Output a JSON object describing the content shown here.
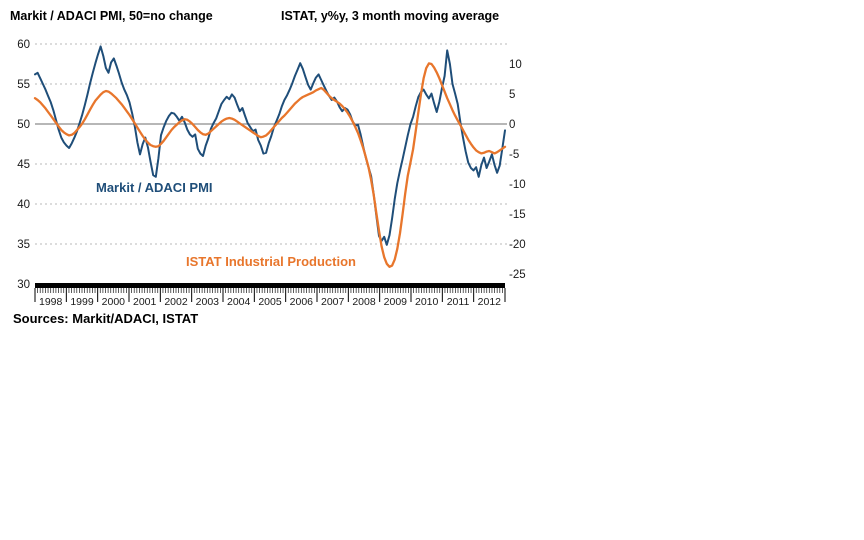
{
  "header": {
    "left_title": "Markit / ADACI PMI, 50=no change",
    "right_title": "ISTAT, y%y, 3 month moving average"
  },
  "legend": {
    "pmi": "Markit / ADACI PMI",
    "ip": "ISTAT Industrial Production"
  },
  "footer": {
    "sources": "Sources: Markit/ADACI, ISTAT"
  },
  "colors": {
    "pmi": "#1F4E79",
    "ip": "#E8762C",
    "grid": "#b8b8b8",
    "zero_line": "#8c8c8c",
    "axis": "#000000",
    "tick": "#333333",
    "text": "#1a1a1a"
  },
  "chart_data": {
    "type": "line",
    "title": "Italy PMI vs Industrial Production",
    "x_years": [
      1998,
      1999,
      2000,
      2001,
      2002,
      2003,
      2004,
      2005,
      2006,
      2007,
      2008,
      2009,
      2010,
      2011,
      2012
    ],
    "x_frequency": "monthly",
    "x_start": "1998-01",
    "x_end": "2012-12",
    "left_axis": {
      "label": "Markit / ADACI PMI, 50=no change",
      "ticks": [
        60,
        55,
        50,
        45,
        40,
        35,
        30
      ],
      "range": [
        30,
        60
      ],
      "solid_line_at": 50,
      "grid": "dotted"
    },
    "right_axis": {
      "label": "ISTAT, y%y, 3 month moving average",
      "ticks": [
        10,
        5,
        0,
        -5,
        -10,
        -15,
        -20,
        -25
      ],
      "range": [
        -25,
        10
      ]
    },
    "series": [
      {
        "name": "Markit / ADACI PMI",
        "axis": "left",
        "color_key": "pmi",
        "values": [
          56.2,
          56.4,
          55.7,
          55.0,
          54.3,
          53.5,
          52.7,
          51.7,
          50.5,
          49.3,
          48.3,
          47.7,
          47.3,
          47.0,
          47.6,
          48.3,
          49.1,
          50.1,
          51.2,
          52.4,
          53.7,
          55.1,
          56.4,
          57.6,
          58.7,
          59.7,
          58.5,
          57.0,
          56.4,
          57.7,
          58.2,
          57.3,
          56.3,
          55.2,
          54.3,
          53.6,
          52.7,
          51.3,
          49.7,
          47.7,
          46.2,
          47.5,
          48.3,
          47.1,
          45.3,
          43.6,
          43.4,
          45.7,
          48.6,
          49.6,
          50.4,
          51.0,
          51.4,
          51.3,
          50.9,
          50.4,
          50.9,
          50.2,
          49.3,
          48.7,
          48.4,
          48.7,
          46.9,
          46.3,
          46.0,
          47.3,
          48.2,
          49.4,
          50.1,
          50.7,
          51.6,
          52.5,
          53.0,
          53.4,
          53.1,
          53.7,
          53.3,
          52.4,
          51.6,
          52.0,
          51.0,
          50.1,
          49.6,
          49.1,
          49.3,
          48.0,
          47.3,
          46.3,
          46.4,
          47.6,
          48.5,
          49.6,
          50.4,
          51.2,
          52.2,
          53.0,
          53.6,
          54.3,
          55.1,
          56.0,
          56.8,
          57.6,
          56.9,
          55.9,
          54.9,
          54.3,
          55.1,
          55.8,
          56.2,
          55.5,
          54.8,
          54.1,
          53.5,
          53.0,
          53.3,
          52.8,
          52.1,
          51.6,
          52.0,
          51.8,
          51.2,
          50.3,
          49.8,
          49.9,
          48.7,
          47.2,
          45.8,
          44.6,
          43.5,
          41.2,
          38.6,
          36.0,
          35.4,
          35.9,
          34.9,
          36.1,
          38.2,
          40.6,
          42.6,
          44.2,
          45.6,
          47.1,
          48.6,
          50.0,
          50.9,
          52.2,
          53.4,
          54.0,
          54.3,
          53.7,
          53.2,
          53.8,
          52.6,
          51.5,
          52.8,
          54.5,
          56.0,
          59.2,
          57.5,
          55.0,
          53.8,
          52.5,
          50.2,
          48.3,
          46.6,
          45.2,
          44.5,
          44.2,
          44.6,
          43.4,
          44.9,
          45.8,
          44.5,
          45.3,
          46.2,
          44.9,
          43.9,
          44.8,
          47.0,
          49.2
        ]
      },
      {
        "name": "ISTAT Industrial Production",
        "axis": "right",
        "color_key": "ip",
        "values": [
          4.3,
          4.0,
          3.6,
          3.1,
          2.6,
          2.0,
          1.4,
          0.8,
          0.2,
          -0.4,
          -1.0,
          -1.4,
          -1.7,
          -1.9,
          -1.8,
          -1.5,
          -1.0,
          -0.5,
          0.1,
          0.8,
          1.6,
          2.4,
          3.2,
          3.9,
          4.4,
          4.9,
          5.3,
          5.5,
          5.4,
          5.1,
          4.7,
          4.3,
          3.8,
          3.3,
          2.7,
          2.1,
          1.5,
          0.8,
          0.1,
          -0.6,
          -1.3,
          -2.0,
          -2.6,
          -3.1,
          -3.5,
          -3.7,
          -3.8,
          -3.7,
          -3.3,
          -2.8,
          -2.2,
          -1.6,
          -1.0,
          -0.5,
          -0.1,
          0.3,
          0.6,
          0.8,
          0.7,
          0.4,
          0.0,
          -0.5,
          -1.0,
          -1.4,
          -1.7,
          -1.8,
          -1.6,
          -1.2,
          -0.8,
          -0.4,
          0.0,
          0.4,
          0.7,
          0.9,
          1.0,
          0.9,
          0.7,
          0.4,
          0.1,
          -0.2,
          -0.5,
          -0.8,
          -1.1,
          -1.4,
          -1.7,
          -2.0,
          -2.2,
          -2.1,
          -1.9,
          -1.5,
          -1.0,
          -0.5,
          0.0,
          0.5,
          1.0,
          1.4,
          1.9,
          2.4,
          2.9,
          3.4,
          3.8,
          4.2,
          4.5,
          4.7,
          4.9,
          5.1,
          5.3,
          5.6,
          5.8,
          6.0,
          5.7,
          5.2,
          4.7,
          4.3,
          4.0,
          3.7,
          3.4,
          3.0,
          2.5,
          1.9,
          1.2,
          0.4,
          -0.5,
          -1.5,
          -2.7,
          -4.0,
          -5.5,
          -7.2,
          -9.3,
          -11.8,
          -14.8,
          -17.8,
          -20.4,
          -22.2,
          -23.3,
          -23.8,
          -23.6,
          -22.6,
          -20.8,
          -18.2,
          -15.0,
          -11.6,
          -8.6,
          -6.4,
          -4.2,
          -1.2,
          2.0,
          5.0,
          7.6,
          9.3,
          10.1,
          10.0,
          9.4,
          8.6,
          7.6,
          6.5,
          5.4,
          4.3,
          3.3,
          2.3,
          1.4,
          0.6,
          -0.2,
          -1.0,
          -1.8,
          -2.6,
          -3.3,
          -3.9,
          -4.4,
          -4.7,
          -4.9,
          -4.8,
          -4.6,
          -4.5,
          -4.7,
          -4.9,
          -4.7,
          -4.4,
          -4.1,
          -3.8
        ]
      }
    ]
  }
}
